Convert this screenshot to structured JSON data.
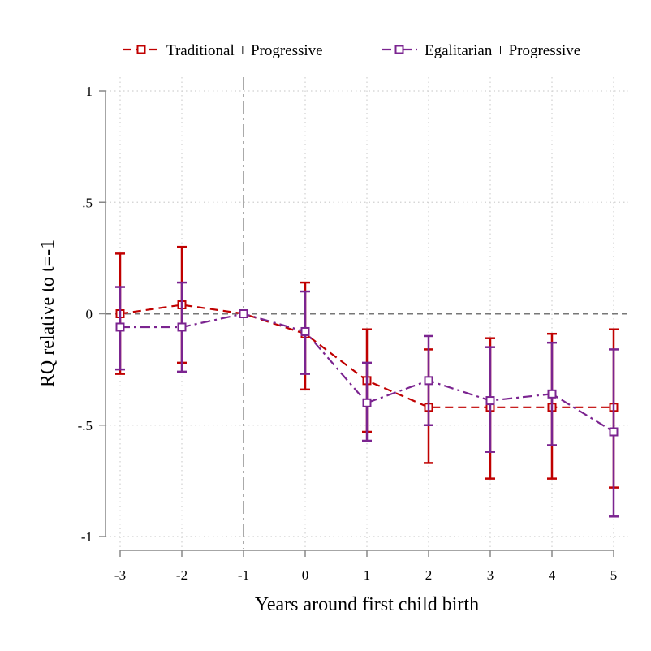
{
  "chart_data": {
    "type": "line",
    "xlabel": "Years around first child birth",
    "ylabel": "RQ relative to t=-1",
    "x": [
      -3,
      -2,
      -1,
      0,
      1,
      2,
      3,
      4,
      5
    ],
    "x_tick_labels": [
      "-3",
      "-2",
      "-1",
      "0",
      "1",
      "2",
      "3",
      "4",
      "5"
    ],
    "y_ticks": [
      1,
      0.5,
      0,
      -0.5,
      -1
    ],
    "y_tick_labels": [
      "1",
      ".5",
      "0",
      "-.5",
      "-1"
    ],
    "ylim": [
      -1,
      1
    ],
    "xlim": [
      -3,
      5
    ],
    "reference_lines": {
      "vertical_x": -1,
      "horizontal_y": 0
    },
    "grid": "dotted",
    "legend_position": "top",
    "series": [
      {
        "name": "Traditional + Progressive",
        "color": "#c00000",
        "line_style": "dashed",
        "marker": "hollow-square",
        "values": [
          0.0,
          0.04,
          0.0,
          -0.09,
          -0.3,
          -0.42,
          -0.42,
          -0.42,
          -0.42
        ],
        "ci_low": [
          -0.27,
          -0.22,
          0.0,
          -0.34,
          -0.53,
          -0.67,
          -0.74,
          -0.74,
          -0.78
        ],
        "ci_high": [
          0.27,
          0.3,
          0.0,
          0.14,
          -0.07,
          -0.16,
          -0.11,
          -0.09,
          -0.07
        ]
      },
      {
        "name": "Egalitarian + Progressive",
        "color": "#7b2490",
        "line_style": "dashdot",
        "marker": "hollow-square",
        "values": [
          -0.06,
          -0.06,
          0.0,
          -0.08,
          -0.4,
          -0.3,
          -0.39,
          -0.36,
          -0.53
        ],
        "ci_low": [
          -0.25,
          -0.26,
          0.0,
          -0.27,
          -0.57,
          -0.5,
          -0.62,
          -0.59,
          -0.91
        ],
        "ci_high": [
          0.12,
          0.14,
          0.0,
          0.1,
          -0.22,
          -0.1,
          -0.15,
          -0.13,
          -0.16
        ]
      }
    ]
  }
}
